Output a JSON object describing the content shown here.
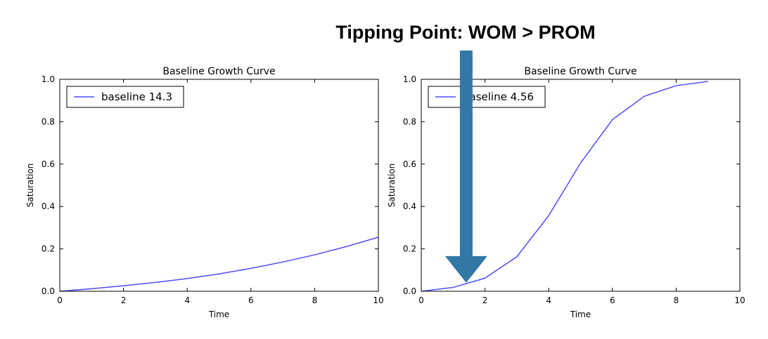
{
  "headline": "Tipping Point: WOM > PROM",
  "colors": {
    "line": "#4d4dff",
    "arrow": "#3278a6",
    "axis": "#000000"
  },
  "annotation": {
    "type": "arrow",
    "icon": "down-arrow-icon",
    "points_to_chart": 1,
    "points_to_x": 1.4,
    "points_to_y": 0.04
  },
  "chart_data": [
    {
      "type": "line",
      "title": "Baseline Growth Curve",
      "xlabel": "Time",
      "ylabel": "Saturation",
      "xlim": [
        0,
        10
      ],
      "ylim": [
        0,
        1.0
      ],
      "xticks": [
        "0",
        "2",
        "4",
        "6",
        "8",
        "10"
      ],
      "yticks": [
        "0.0",
        "0.2",
        "0.4",
        "0.6",
        "0.8",
        "1.0"
      ],
      "grid": false,
      "legend": "top-left",
      "series": [
        {
          "name": "baseline 14.3",
          "x": [
            0,
            1,
            2,
            3,
            4,
            5,
            6,
            7,
            8,
            9,
            10
          ],
          "y": [
            0.0,
            0.012,
            0.026,
            0.042,
            0.06,
            0.082,
            0.108,
            0.138,
            0.172,
            0.211,
            0.255
          ]
        }
      ]
    },
    {
      "type": "line",
      "title": "Baseline Growth Curve",
      "xlabel": "Time",
      "ylabel": "Saturation",
      "xlim": [
        0,
        10
      ],
      "ylim": [
        0,
        1.0
      ],
      "xticks": [
        "0",
        "2",
        "4",
        "6",
        "8",
        "10"
      ],
      "yticks": [
        "0.0",
        "0.2",
        "0.4",
        "0.6",
        "0.8",
        "1.0"
      ],
      "grid": false,
      "legend": "top-left",
      "series": [
        {
          "name": "baseline 4.56",
          "x": [
            0,
            1,
            2,
            3,
            4,
            5,
            6,
            7,
            8,
            9
          ],
          "y": [
            0.0,
            0.018,
            0.062,
            0.163,
            0.357,
            0.605,
            0.81,
            0.92,
            0.97,
            0.99
          ]
        }
      ]
    }
  ]
}
